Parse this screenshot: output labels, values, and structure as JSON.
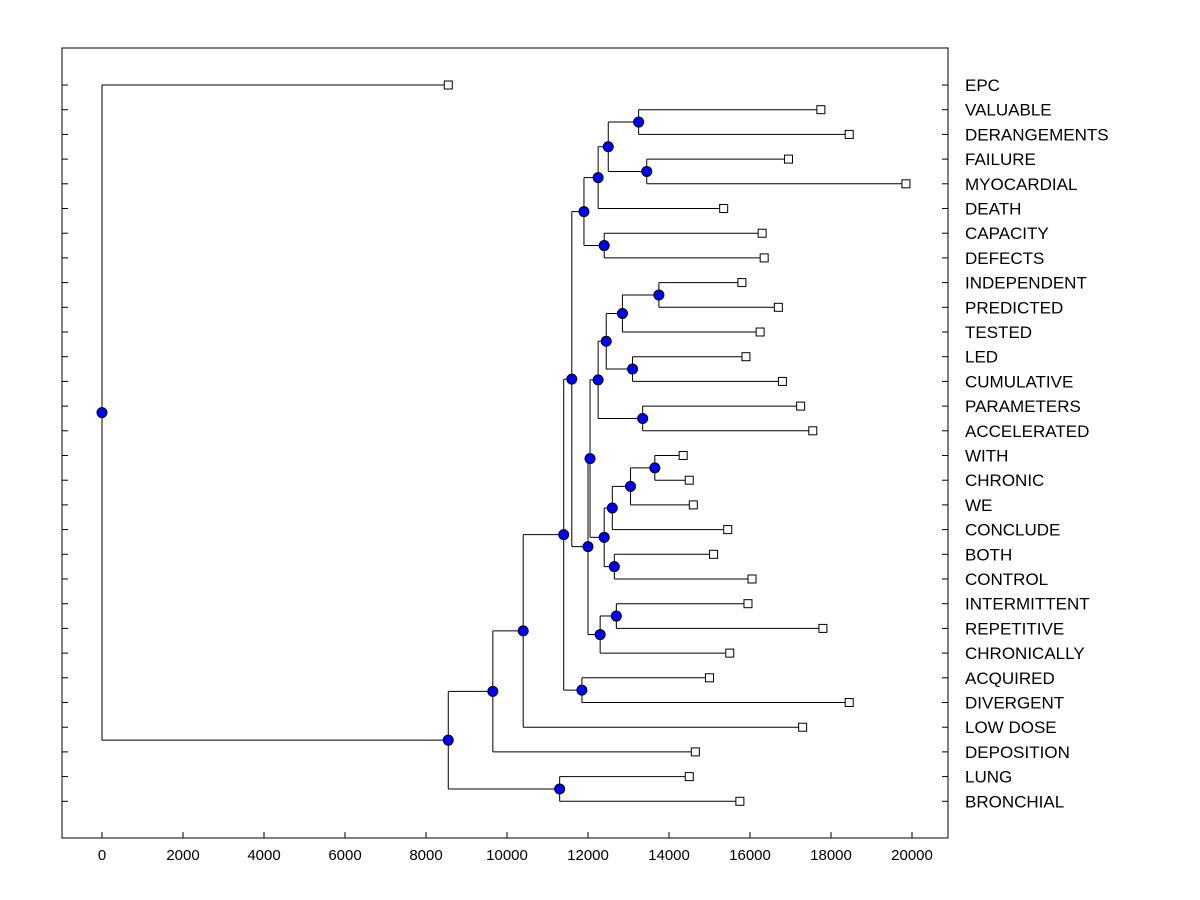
{
  "chart_data": {
    "type": "dendrogram",
    "title": "",
    "xlabel": "",
    "ylabel": "",
    "xlim": [
      -1000,
      21000
    ],
    "x_ticks": [
      0,
      2000,
      4000,
      6000,
      8000,
      10000,
      12000,
      14000,
      16000,
      18000,
      20000
    ],
    "colors": {
      "node_fill": "#0000ff",
      "leaf_fill": "#ffffff",
      "line": "#000000"
    },
    "leaves": [
      {
        "label": "EPC",
        "x": 8550
      },
      {
        "label": "VALUABLE",
        "x": 17750
      },
      {
        "label": "DERANGEMENTS",
        "x": 18450
      },
      {
        "label": "FAILURE",
        "x": 16950
      },
      {
        "label": "MYOCARDIAL",
        "x": 19850
      },
      {
        "label": "DEATH",
        "x": 15350
      },
      {
        "label": "CAPACITY",
        "x": 16300
      },
      {
        "label": "DEFECTS",
        "x": 16350
      },
      {
        "label": "INDEPENDENT",
        "x": 15800
      },
      {
        "label": "PREDICTED",
        "x": 16700
      },
      {
        "label": "TESTED",
        "x": 16250
      },
      {
        "label": "LED",
        "x": 15900
      },
      {
        "label": "CUMULATIVE",
        "x": 16800
      },
      {
        "label": "PARAMETERS",
        "x": 17250
      },
      {
        "label": "ACCELERATED",
        "x": 17550
      },
      {
        "label": "WITH",
        "x": 14350
      },
      {
        "label": "CHRONIC",
        "x": 14500
      },
      {
        "label": "WE",
        "x": 14600
      },
      {
        "label": "CONCLUDE",
        "x": 15450
      },
      {
        "label": "BOTH",
        "x": 15100
      },
      {
        "label": "CONTROL",
        "x": 16050
      },
      {
        "label": "INTERMITTENT",
        "x": 15950
      },
      {
        "label": "REPETITIVE",
        "x": 17800
      },
      {
        "label": "CHRONICALLY",
        "x": 15500
      },
      {
        "label": "ACQUIRED",
        "x": 15000
      },
      {
        "label": "DIVERGENT",
        "x": 18450
      },
      {
        "label": "LOW DOSE",
        "x": 17300
      },
      {
        "label": "DEPOSITION",
        "x": 14650
      },
      {
        "label": "LUNG",
        "x": 14500
      },
      {
        "label": "BRONCHIAL",
        "x": 15750
      }
    ],
    "merges": [
      {
        "id": "n1",
        "x": 13250,
        "children": [
          "L1",
          "L2"
        ]
      },
      {
        "id": "n2",
        "x": 13450,
        "children": [
          "L3",
          "L4"
        ]
      },
      {
        "id": "n3",
        "x": 12500,
        "children": [
          "n1",
          "n2"
        ]
      },
      {
        "id": "n4",
        "x": 12250,
        "children": [
          "n3",
          "L5"
        ]
      },
      {
        "id": "n5",
        "x": 12400,
        "children": [
          "L6",
          "L7"
        ]
      },
      {
        "id": "n6",
        "x": 11900,
        "children": [
          "n4",
          "n5"
        ]
      },
      {
        "id": "n7",
        "x": 13750,
        "children": [
          "L8",
          "L9"
        ]
      },
      {
        "id": "n8",
        "x": 12850,
        "children": [
          "n7",
          "L10"
        ]
      },
      {
        "id": "n9",
        "x": 13100,
        "children": [
          "L11",
          "L12"
        ]
      },
      {
        "id": "n10",
        "x": 12450,
        "children": [
          "n8",
          "n9"
        ]
      },
      {
        "id": "n11",
        "x": 13350,
        "children": [
          "L13",
          "L14"
        ]
      },
      {
        "id": "n12",
        "x": 12250,
        "children": [
          "n10",
          "n11"
        ]
      },
      {
        "id": "n13",
        "x": 13650,
        "children": [
          "L15",
          "L16"
        ]
      },
      {
        "id": "n14",
        "x": 13050,
        "children": [
          "n13",
          "L17"
        ]
      },
      {
        "id": "n15",
        "x": 12600,
        "children": [
          "n14",
          "L18"
        ]
      },
      {
        "id": "n16",
        "x": 12650,
        "children": [
          "L19",
          "L20"
        ]
      },
      {
        "id": "n17",
        "x": 12400,
        "children": [
          "n15",
          "n16"
        ]
      },
      {
        "id": "n18",
        "x": 12050,
        "children": [
          "n12",
          "n17"
        ]
      },
      {
        "id": "n19",
        "x": 12700,
        "children": [
          "L21",
          "L22"
        ]
      },
      {
        "id": "n20",
        "x": 12300,
        "children": [
          "n19",
          "L23"
        ]
      },
      {
        "id": "n21",
        "x": 12000,
        "children": [
          "n18",
          "n20"
        ]
      },
      {
        "id": "n22",
        "x": 11600,
        "children": [
          "n6",
          "n21"
        ]
      },
      {
        "id": "n23",
        "x": 11850,
        "children": [
          "L24",
          "L25"
        ]
      },
      {
        "id": "n24",
        "x": 11400,
        "children": [
          "n22",
          "n23"
        ]
      },
      {
        "id": "n25",
        "x": 10400,
        "children": [
          "n24",
          "L26"
        ]
      },
      {
        "id": "n26",
        "x": 9650,
        "children": [
          "n25",
          "L27"
        ]
      },
      {
        "id": "n27",
        "x": 11300,
        "children": [
          "L28",
          "L29"
        ]
      },
      {
        "id": "n28",
        "x": 8550,
        "children": [
          "n26",
          "n27"
        ]
      },
      {
        "id": "n29",
        "x": 0,
        "children": [
          "L0",
          "n28"
        ]
      }
    ]
  }
}
